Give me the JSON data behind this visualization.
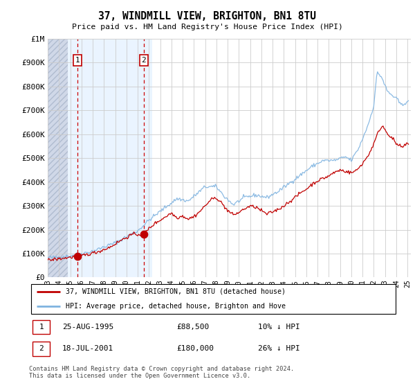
{
  "title": "37, WINDMILL VIEW, BRIGHTON, BN1 8TU",
  "subtitle": "Price paid vs. HM Land Registry's House Price Index (HPI)",
  "ylim": [
    0,
    1000000
  ],
  "yticks": [
    0,
    100000,
    200000,
    300000,
    400000,
    500000,
    600000,
    700000,
    800000,
    900000,
    1000000
  ],
  "ytick_labels": [
    "£0",
    "£100K",
    "£200K",
    "£300K",
    "£400K",
    "£500K",
    "£600K",
    "£700K",
    "£800K",
    "£900K",
    "£1M"
  ],
  "hpi_color": "#7fb3e0",
  "price_color": "#c00000",
  "sale1_x": 1995.64,
  "sale1_y": 88500,
  "sale2_x": 2001.54,
  "sale2_y": 180000,
  "sale1_label": "1",
  "sale2_label": "2",
  "legend_line1": "37, WINDMILL VIEW, BRIGHTON, BN1 8TU (detached house)",
  "legend_line2": "HPI: Average price, detached house, Brighton and Hove",
  "footer": "Contains HM Land Registry data © Crown copyright and database right 2024.\nThis data is licensed under the Open Government Licence v3.0.",
  "grid_color": "#cccccc",
  "vline_color": "#cc0000",
  "xlim_left": 1993.0,
  "xlim_right": 2025.3,
  "hatch_end": 1994.8,
  "shade_start": 1994.8,
  "shade_end": 2002.3
}
